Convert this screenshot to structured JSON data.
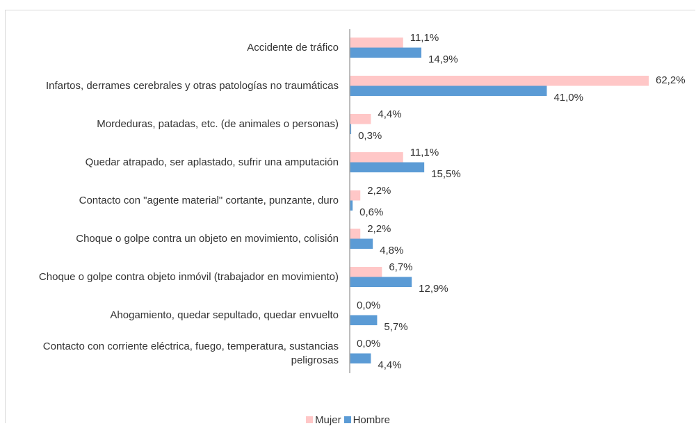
{
  "chart_data": {
    "type": "barh",
    "categories": [
      "Accidente de tráfico",
      "Infartos, derrames cerebrales y otras patologías no traumáticas",
      "Mordeduras, patadas, etc. (de animales o personas)",
      "Quedar atrapado, ser aplastado, sufrir una amputación",
      "Contacto con \"agente material\" cortante, punzante, duro",
      "Choque o golpe contra un objeto en movimiento, colisión",
      "Choque o golpe contra objeto inmóvil  (trabajador en movimiento)",
      "Ahogamiento, quedar sepultado, quedar envuelto",
      "Contacto con corriente eléctrica, fuego, temperatura, sustancias peligrosas"
    ],
    "series": [
      {
        "name": "Mujer",
        "color": "#ffc7c7",
        "values": [
          11.1,
          62.2,
          4.4,
          11.1,
          2.2,
          2.2,
          6.7,
          0.0,
          0.0
        ],
        "value_labels": [
          "11,1%",
          "62,2%",
          "4,4%",
          "11,1%",
          "2,2%",
          "2,2%",
          "6,7%",
          "0,0%",
          "0,0%"
        ]
      },
      {
        "name": "Hombre",
        "color": "#5b9bd5",
        "values": [
          14.9,
          41.0,
          0.3,
          15.5,
          0.6,
          4.8,
          12.9,
          5.7,
          4.4
        ],
        "value_labels": [
          "14,9%",
          "41,0%",
          "0,3%",
          "15,5%",
          "0,6%",
          "4,8%",
          "12,9%",
          "5,7%",
          "4,4%"
        ]
      }
    ],
    "xlim": [
      0,
      70
    ],
    "legend": "bottom"
  }
}
